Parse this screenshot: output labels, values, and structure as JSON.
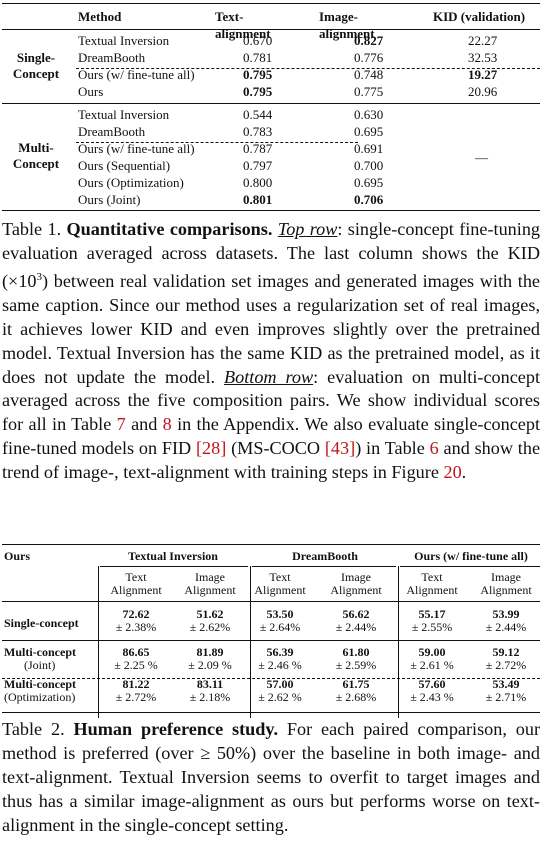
{
  "table1": {
    "headers": {
      "method": "Method",
      "text": "Text-alignment",
      "image": "Image-alignment",
      "kid": "KID (validation)"
    },
    "single_label": [
      "Single-",
      "Concept"
    ],
    "multi_label": [
      "Multi-",
      "Concept"
    ],
    "single_rows": [
      {
        "method": "Textual Inversion",
        "text": "0.670",
        "image": "0.827",
        "kid": "22.27"
      },
      {
        "method": "DreamBooth",
        "text": "0.781",
        "image": "0.776",
        "kid": "32.53"
      },
      {
        "method": "Ours (w/ fine-tune all)",
        "text": "0.795",
        "image": "0.748",
        "kid": "19.27"
      },
      {
        "method": "Ours",
        "text": "0.795",
        "image": "0.775",
        "kid": "20.96"
      }
    ],
    "multi_rows": [
      {
        "method": "Textual Inversion",
        "text": "0.544",
        "image": "0.630"
      },
      {
        "method": "DreamBooth",
        "text": "0.783",
        "image": "0.695"
      },
      {
        "method": "Ours (w/ fine-tune all)",
        "text": "0.787",
        "image": "0.691"
      },
      {
        "method": "Ours (Sequential)",
        "text": "0.797",
        "image": "0.700"
      },
      {
        "method": "Ours (Optimization)",
        "text": "0.800",
        "image": "0.695"
      },
      {
        "method": "Ours (Joint)",
        "text": "0.801",
        "image": "0.706"
      }
    ],
    "multi_kid": "—"
  },
  "caption1": {
    "label": "Table 1.",
    "bold": "Quantitative comparisons.",
    "top_row": "Top row",
    "part1": ": single-concept fine-tuning evaluation averaged across datasets. The last column shows the KID (×10",
    "sup": "3",
    "part2": ") between real validation set images and generated images with the same caption. Since our method uses a regularization set of real images, it achieves lower KID and even improves slightly over the pretrained model. Textual Inversion has the same KID as the pretrained model, as it does not update the model.",
    "bottom_row": "Bottom row",
    "part3": ": evaluation on multi-concept averaged across the five composition pairs. We show individual scores for all in Table",
    "ref7": "7",
    "and": "and",
    "ref8": "8",
    "part4": "in the Appendix. We also evaluate single-concept fine-tuned models on FID",
    "ref28": "[28]",
    "part5": "(MS-COCO",
    "ref43": "[43]",
    "part6": ") in Table",
    "ref6": "6",
    "part7": "and show the trend of image-, text-alignment with training steps in Figure",
    "ref20": "20",
    "end": "."
  },
  "table2": {
    "ours": "Ours",
    "groups": [
      "Textual Inversion",
      "DreamBooth",
      "Ours (w/ fine-tune all)"
    ],
    "sub_headers": [
      [
        "Text",
        "Alignment"
      ],
      [
        "Image",
        "Alignment"
      ]
    ],
    "rows": [
      {
        "label": [
          "Single-concept"
        ],
        "values": [
          [
            "72.62",
            "± 2.38%"
          ],
          [
            "51.62",
            "± 2.62%"
          ],
          [
            "53.50",
            "± 2.64%"
          ],
          [
            "56.62",
            "± 2.44%"
          ],
          [
            "55.17",
            "± 2.55%"
          ],
          [
            "53.99",
            "± 2.44%"
          ]
        ]
      },
      {
        "label": [
          "Multi-concept",
          "(Joint)"
        ],
        "values": [
          [
            "86.65",
            "± 2.25 %"
          ],
          [
            "81.89",
            "± 2.09 %"
          ],
          [
            "56.39",
            "± 2.46 %"
          ],
          [
            "61.80",
            "± 2.59%"
          ],
          [
            "59.00",
            "± 2.61 %"
          ],
          [
            "59.12",
            "± 2.72%"
          ]
        ]
      },
      {
        "label": [
          "Multi-concept",
          "(Optimization)"
        ],
        "values": [
          [
            "81.22",
            "± 2.72%"
          ],
          [
            "83.11",
            "± 2.18%"
          ],
          [
            "57.00",
            "± 2.62 %"
          ],
          [
            "61.75",
            "± 2.68%"
          ],
          [
            "57.60",
            "± 2.43 %"
          ],
          [
            "53.49",
            "± 2.71%"
          ]
        ]
      }
    ]
  },
  "caption2": {
    "label": "Table 2.",
    "bold": "Human preference study.",
    "part1": "For each paired comparison, our method is preferred (over ≥ 50%) over the baseline in both image- and text-alignment. Textual Inversion seems to overfit to target images and thus has a similar image-alignment as ours but performs worse on text-alignment in the single-concept setting."
  }
}
